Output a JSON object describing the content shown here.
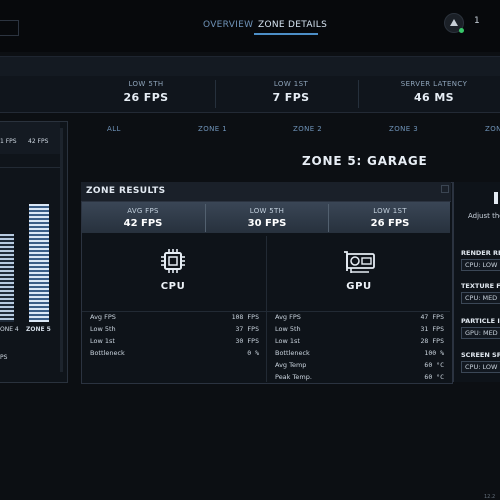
{
  "nav": {
    "tabs": [
      "OVERVIEW",
      "ZONE DETAILS"
    ],
    "active_tab": "ZONE DETAILS",
    "notification_count": "1"
  },
  "summary_stats": [
    {
      "label": "LOW 5TH",
      "value": "26 FPS"
    },
    {
      "label": "LOW 1ST",
      "value": "7 FPS"
    },
    {
      "label": "SERVER LATENCY",
      "value": "46 MS"
    }
  ],
  "left_panel": {
    "header_values": [
      "1 FPS",
      "42 FPS"
    ],
    "zone_labels": [
      "ONE 4",
      "ZONE 5"
    ],
    "footer_fragment": "PS"
  },
  "zone_tabs": [
    "ALL",
    "ZONE 1",
    "ZONE 2",
    "ZONE 3",
    "ZON"
  ],
  "zone_title": "ZONE 5: GARAGE",
  "zone_results": {
    "title": "ZONE RESULTS",
    "metrics": [
      {
        "label": "AVG FPS",
        "value": "42 FPS"
      },
      {
        "label": "LOW 5TH",
        "value": "30 FPS"
      },
      {
        "label": "LOW 1ST",
        "value": "26 FPS"
      }
    ],
    "cpu": {
      "name": "CPU",
      "rows": [
        {
          "label": "Avg FPS",
          "value": "108 FPS"
        },
        {
          "label": "Low 5th",
          "value": "37 FPS"
        },
        {
          "label": "Low 1st",
          "value": "30 FPS"
        },
        {
          "label": "Bottleneck",
          "value": "0 %"
        }
      ]
    },
    "gpu": {
      "name": "GPU",
      "rows": [
        {
          "label": "Avg FPS",
          "value": "47 FPS"
        },
        {
          "label": "Low 5th",
          "value": "31 FPS"
        },
        {
          "label": "Low 1st",
          "value": "28 FPS"
        },
        {
          "label": "Bottleneck",
          "value": "100 %"
        },
        {
          "label": "Avg Temp",
          "value": "60 °C"
        },
        {
          "label": "Peak Temp.",
          "value": "60 °C"
        }
      ]
    }
  },
  "right_panel": {
    "adjust_text": "Adjust the",
    "sections": [
      {
        "title": "RENDER RE",
        "value": "CPU: LOW"
      },
      {
        "title": "TEXTURE F",
        "value": "CPU: MED"
      },
      {
        "title": "PARTICLE I",
        "value": "GPU: MED"
      },
      {
        "title": "SCREEN SP",
        "value": "CPU: LOW"
      }
    ]
  },
  "version": "12.2",
  "colors": {
    "accent": "#4d8fc7",
    "status_green": "#38c76a",
    "background": "#0c0f13"
  }
}
